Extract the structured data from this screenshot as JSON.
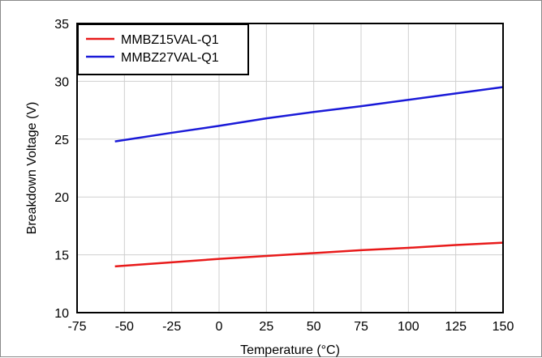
{
  "chart_data": {
    "type": "line",
    "xlabel": "Temperature (°C)",
    "ylabel": "Breakdown Voltage (V)",
    "xlim": [
      -75,
      150
    ],
    "ylim": [
      10,
      35
    ],
    "xticks": [
      -75,
      -50,
      -25,
      0,
      25,
      50,
      75,
      100,
      125,
      150
    ],
    "yticks": [
      10,
      15,
      20,
      25,
      30,
      35
    ],
    "grid": true,
    "legend_position": "top-left",
    "series": [
      {
        "name": "MMBZ15VAL-Q1",
        "color": "#e81a1a",
        "x": [
          -55,
          -25,
          0,
          25,
          50,
          75,
          100,
          125,
          150
        ],
        "y": [
          14.0,
          14.35,
          14.65,
          14.9,
          15.15,
          15.4,
          15.6,
          15.85,
          16.05
        ]
      },
      {
        "name": "MMBZ27VAL-Q1",
        "color": "#1a1ad8",
        "x": [
          -55,
          -25,
          0,
          25,
          50,
          75,
          100,
          125,
          150
        ],
        "y": [
          24.8,
          25.55,
          26.15,
          26.8,
          27.35,
          27.85,
          28.4,
          28.95,
          29.5
        ]
      }
    ]
  }
}
